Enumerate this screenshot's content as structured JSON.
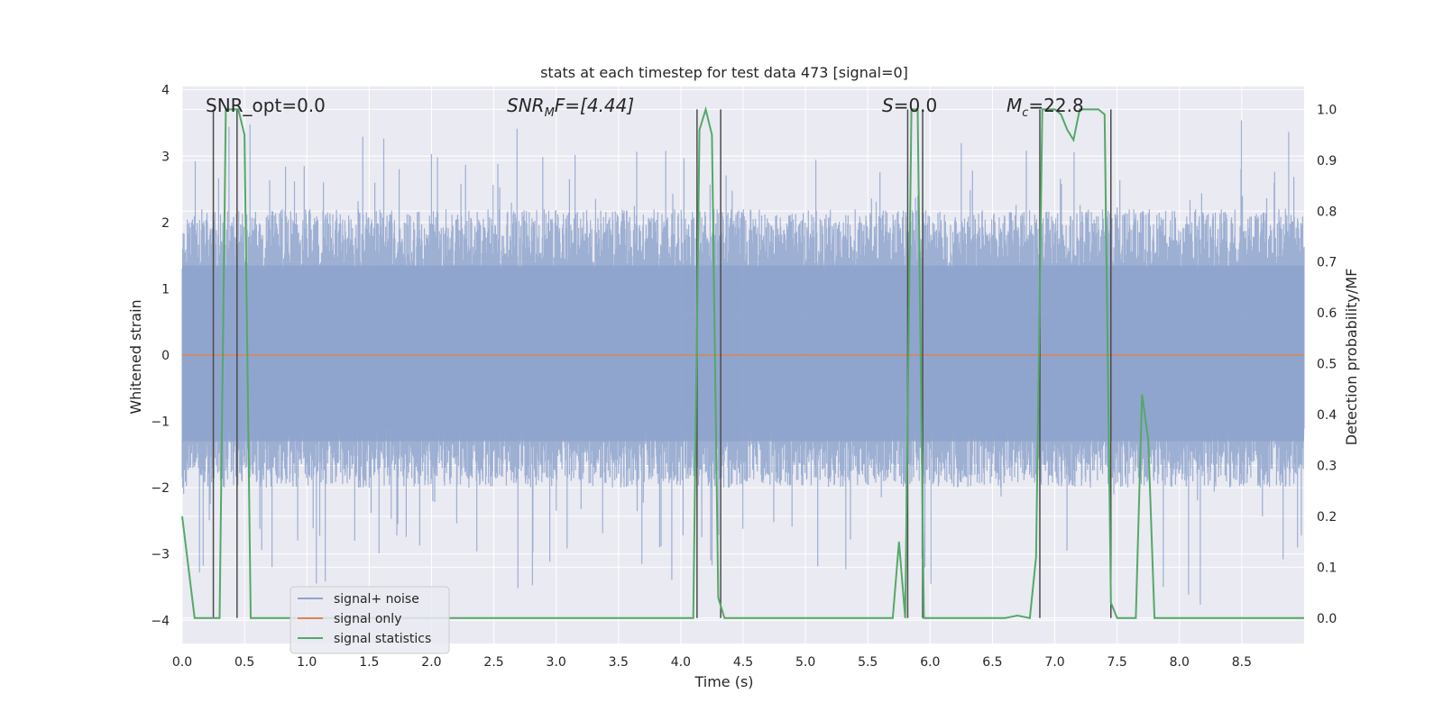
{
  "chart_data": {
    "type": "line",
    "title": "stats at each timestep for test data 473 [signal=0]",
    "xlabel": "Time (s)",
    "ylabel_left": "Whitened strain",
    "ylabel_right": "Detection probability/MF",
    "xlim": [
      0,
      9.0
    ],
    "ylim_left": [
      -4.35,
      4.05
    ],
    "ylim_right": [
      -0.05,
      1.045
    ],
    "grid": true,
    "x_ticks": [
      "0.0",
      "0.5",
      "1.0",
      "1.5",
      "2.0",
      "2.5",
      "3.0",
      "3.5",
      "4.0",
      "4.5",
      "5.0",
      "5.5",
      "6.0",
      "6.5",
      "7.0",
      "7.5",
      "8.0",
      "8.5"
    ],
    "y_left_ticks": [
      "4",
      "3",
      "2",
      "1",
      "0",
      "−1",
      "−2",
      "−3",
      "−4"
    ],
    "y_right_ticks": [
      "1.0",
      "0.9",
      "0.8",
      "0.7",
      "0.6",
      "0.5",
      "0.4",
      "0.3",
      "0.2",
      "0.1",
      "0.0"
    ],
    "annotations": {
      "snr_opt": "SNR_opt=0.0",
      "snr_mf_prefix": "SNR",
      "snr_mf_sub": "M",
      "snr_mf_suffix": "F=[4.44]",
      "s_italic": "S",
      "s_value": "=0.0",
      "mc_italic": "M",
      "mc_sub": "c",
      "mc_value": "=22.8"
    },
    "legend": {
      "placement": "lower-left",
      "entries": [
        "signal+ noise",
        "signal only",
        "signal statistics"
      ]
    },
    "colors": {
      "noise": "#8fa4cc",
      "signal": "#dd8452",
      "stats": "#55a868",
      "vlines": "#4c4c4c",
      "background": "#eaeaf2"
    },
    "series": [
      {
        "name": "signal+ noise",
        "description_axis": "left",
        "typical_range": [
          -2.0,
          2.2
        ],
        "max": 3.6,
        "min": -4.0
      },
      {
        "name": "signal only",
        "axis": "left",
        "x": [
          0,
          9.0
        ],
        "y": [
          0,
          0
        ]
      },
      {
        "name": "signal statistics",
        "axis": "right",
        "x": [
          0.0,
          0.05,
          0.1,
          0.15,
          0.2,
          0.25,
          0.3,
          0.35,
          0.4,
          0.45,
          0.5,
          0.55,
          0.6,
          0.7,
          0.8,
          0.9,
          1.0,
          1.5,
          2.0,
          2.5,
          3.0,
          3.4,
          3.5,
          3.6,
          3.7,
          3.8,
          3.9,
          4.0,
          4.05,
          4.1,
          4.15,
          4.2,
          4.25,
          4.3,
          4.35,
          4.4,
          4.45,
          4.5,
          4.6,
          5.0,
          5.5,
          5.6,
          5.65,
          5.7,
          5.75,
          5.8,
          5.85,
          5.9,
          5.95,
          6.0,
          6.05,
          6.1,
          6.5,
          6.6,
          6.7,
          6.8,
          6.85,
          6.9,
          6.95,
          7.0,
          7.05,
          7.1,
          7.15,
          7.2,
          7.25,
          7.3,
          7.35,
          7.4,
          7.45,
          7.5,
          7.55,
          7.6,
          7.65,
          7.7,
          7.75,
          7.8,
          7.85,
          7.9,
          8.0,
          8.5,
          9.0
        ],
        "y": [
          0.2,
          0.1,
          0.0,
          0.0,
          0.0,
          0.0,
          0.0,
          1.0,
          1.0,
          1.0,
          0.95,
          0.0,
          0.0,
          0.0,
          0.0,
          0.0,
          0.0,
          0.0,
          0.0,
          0.0,
          0.0,
          0.0,
          0.0,
          0.0,
          0.0,
          0.0,
          0.0,
          0.0,
          0.0,
          0.0,
          0.96,
          1.0,
          0.95,
          0.04,
          0.0,
          0.0,
          0.0,
          0.0,
          0.0,
          0.0,
          0.0,
          0.0,
          0.0,
          0.0,
          0.15,
          0.0,
          1.0,
          1.0,
          0.0,
          0.0,
          0.0,
          0.0,
          0.0,
          0.0,
          0.005,
          0.0,
          0.12,
          1.0,
          1.0,
          1.0,
          0.99,
          0.96,
          0.94,
          1.0,
          1.0,
          1.0,
          1.0,
          0.99,
          0.03,
          0.0,
          0.0,
          0.0,
          0.0,
          0.44,
          0.35,
          0.0,
          0.0,
          0.0,
          0.0,
          0.0,
          0.0
        ]
      }
    ],
    "vlines_x": [
      0.25,
      0.44,
      4.13,
      4.32,
      5.82,
      5.94,
      6.88,
      7.45
    ]
  }
}
